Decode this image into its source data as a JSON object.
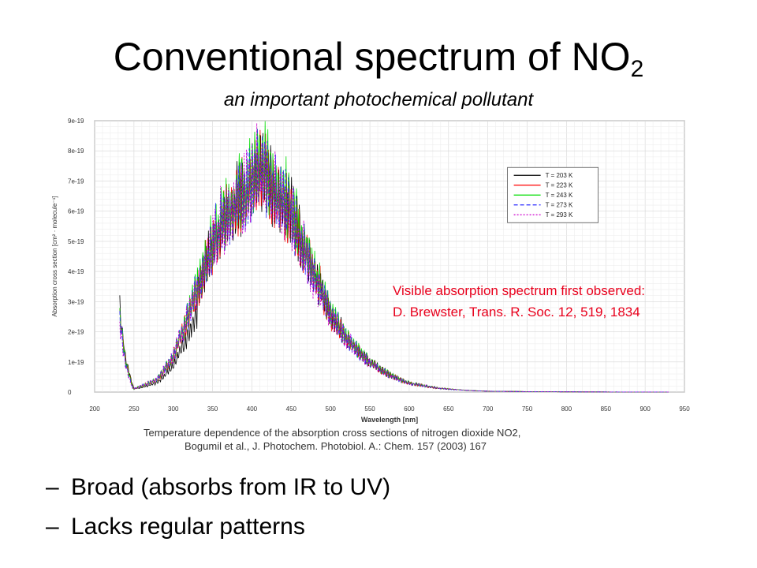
{
  "slide": {
    "title": "Conventional spectrum of NO",
    "title_subscript": "2",
    "subtitle": "an important photochemical pollutant",
    "annotation": [
      "Visible absorption spectrum first observed:",
      "D. Brewster, Trans. R. Soc. 12, 519, 1834"
    ],
    "bullets": [
      {
        "dash": "–",
        "text": "Broad (absorbs from IR to UV)"
      },
      {
        "dash": "–",
        "text": "Lacks regular patterns"
      }
    ],
    "caption": [
      "Temperature dependence of the absorption cross sections of nitrogen dioxide NO2,",
      "Bogumil et al., J. Photochem. Photobiol. A.: Chem. 157 (2003) 167"
    ]
  },
  "chart_data": {
    "type": "line",
    "xlabel": "Wavelength [nm]",
    "ylabel": "Absorption cross section [cm² · molecule⁻¹]",
    "xlim": [
      200,
      950
    ],
    "ylim": [
      0,
      9e-19
    ],
    "xticks": [
      "200",
      "250",
      "300",
      "350",
      "400",
      "450",
      "500",
      "550",
      "600",
      "650",
      "700",
      "750",
      "800",
      "850",
      "900",
      "950"
    ],
    "yticks": [
      "0",
      "1e-19",
      "2e-19",
      "3e-19",
      "4e-19",
      "5e-19",
      "6e-19",
      "7e-19",
      "8e-19",
      "9e-19"
    ],
    "grid": true,
    "legend_position": "top-right",
    "colors": [
      "#000000",
      "#ff0000",
      "#00dd00",
      "#2a2aff",
      "#cc00cc"
    ],
    "series": [
      {
        "name": "T = 203 K"
      },
      {
        "name": "T = 223 K"
      },
      {
        "name": "T = 243 K"
      },
      {
        "name": "T = 273 K"
      },
      {
        "name": "T = 293 K"
      }
    ],
    "x": [
      232,
      240,
      250,
      260,
      280,
      300,
      320,
      340,
      360,
      380,
      400,
      410,
      420,
      430,
      440,
      450,
      460,
      470,
      480,
      490,
      500,
      520,
      540,
      560,
      580,
      600,
      620,
      640,
      660,
      680,
      700,
      750,
      800,
      850,
      930
    ],
    "y_envelope": [
      2.7e-19,
      1e-19,
      1e-20,
      2e-20,
      4e-20,
      1.1e-19,
      2.5e-19,
      4e-19,
      5.5e-19,
      6.2e-19,
      6.9e-19,
      7.4e-19,
      7.2e-19,
      6.6e-19,
      6.3e-19,
      6e-19,
      5.2e-19,
      4.6e-19,
      3.8e-19,
      3.3e-19,
      2.6e-19,
      1.8e-19,
      1.2e-19,
      8e-20,
      5e-20,
      3e-20,
      2e-20,
      1.2e-20,
      8e-21,
      5e-21,
      3e-21,
      1.5e-21,
      8e-22,
      4e-22,
      2e-22
    ]
  }
}
